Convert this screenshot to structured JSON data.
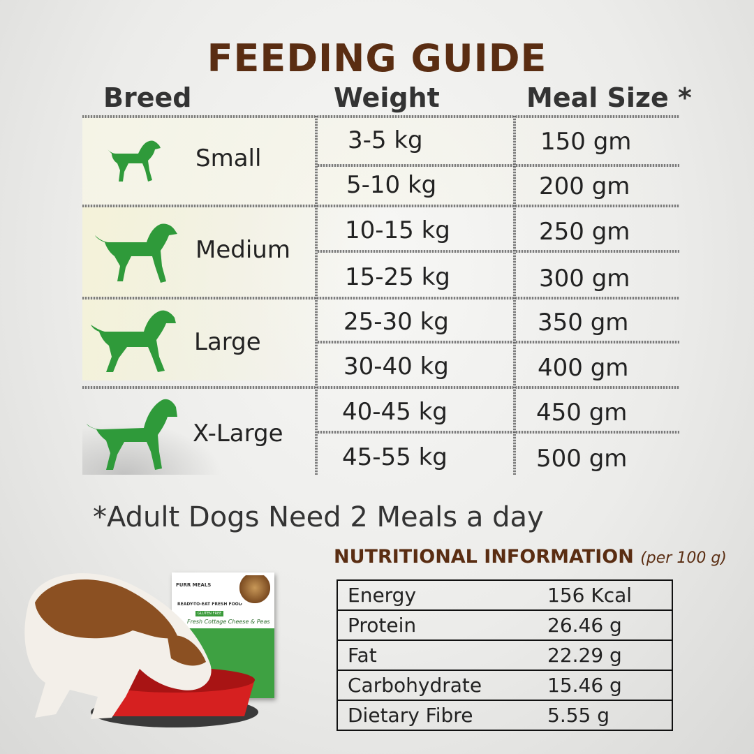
{
  "title": "FEEDING GUIDE",
  "headers": {
    "breed": "Breed",
    "weight": "Weight",
    "meal": "Meal Size *"
  },
  "breeds": [
    {
      "name": "Small",
      "rows": [
        {
          "weight": "3-5 kg",
          "meal": "150 gm"
        },
        {
          "weight": "5-10 kg",
          "meal": "200 gm"
        }
      ]
    },
    {
      "name": "Medium",
      "rows": [
        {
          "weight": "10-15 kg",
          "meal": "250 gm"
        },
        {
          "weight": "15-25 kg",
          "meal": "300 gm"
        }
      ]
    },
    {
      "name": "Large",
      "rows": [
        {
          "weight": "25-30 kg",
          "meal": "350 gm"
        },
        {
          "weight": "30-40 kg",
          "meal": "400 gm"
        }
      ]
    },
    {
      "name": "X-Large",
      "rows": [
        {
          "weight": "40-45 kg",
          "meal": "450 gm"
        },
        {
          "weight": "45-55 kg",
          "meal": "500 gm"
        }
      ]
    }
  ],
  "footnote": "*Adult Dogs Need 2 Meals a day",
  "nutrition": {
    "title": "NUTRITIONAL INFORMATION",
    "per": "(per 100 g)",
    "rows": [
      {
        "label": "Energy",
        "value": "156 Kcal"
      },
      {
        "label": "Protein",
        "value": "26.46 g"
      },
      {
        "label": "Fat",
        "value": "22.29 g"
      },
      {
        "label": "Carbohydrate",
        "value": "15.46 g"
      },
      {
        "label": "Dietary Fibre",
        "value": "5.55 g"
      }
    ]
  },
  "package": {
    "brand": "FURR MEALS",
    "tagline": "READY-TO-EAT FRESH FOOD",
    "badge": "GLUTEN FREE",
    "product": "Fresh Cottage Cheese & Peas"
  },
  "colors": {
    "title": "#5a2d12",
    "dog": "#2f9a3a",
    "beam": "#f2f0d8"
  },
  "icons": [
    "small-dog-icon",
    "medium-dog-icon",
    "large-dog-icon",
    "xlarge-dog-icon"
  ]
}
